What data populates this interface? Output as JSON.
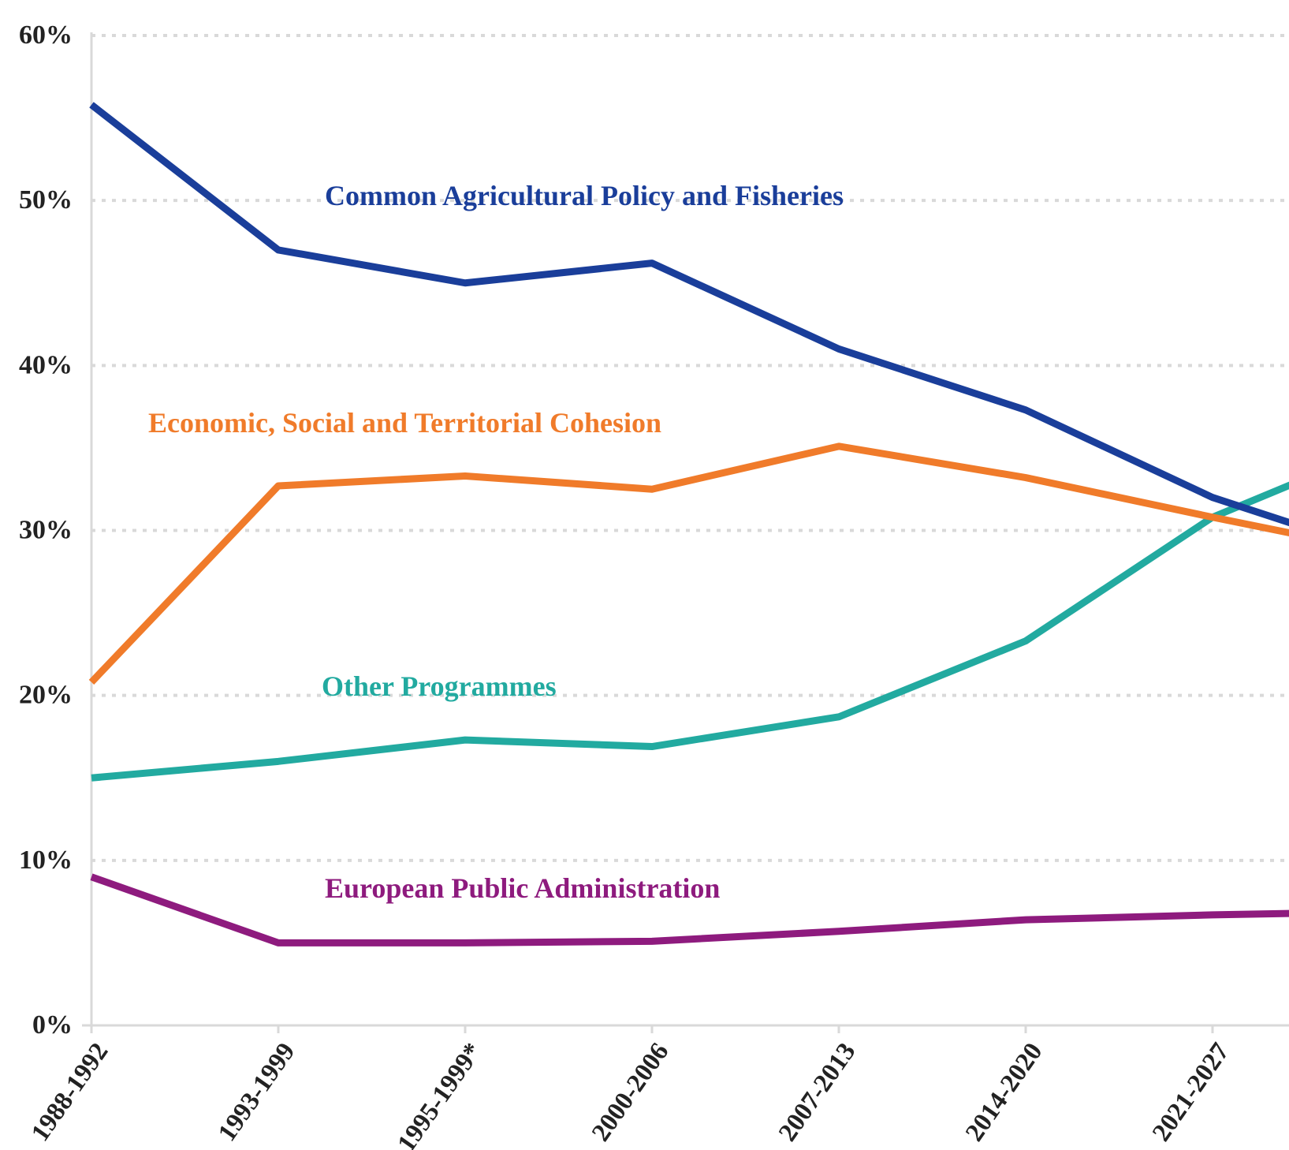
{
  "chart_data": {
    "type": "line",
    "categories": [
      "1988-1992",
      "1993-1999",
      "1995-1999*",
      "2000-2006",
      "2007-2013",
      "2014-2020",
      "2021-2027",
      ""
    ],
    "ylim": [
      0,
      60
    ],
    "yticks": [
      0,
      10,
      20,
      30,
      40,
      50,
      60
    ],
    "ytick_labels": [
      "0%",
      "10%",
      "20%",
      "30%",
      "40%",
      "50%",
      "60%"
    ],
    "grid": true,
    "series": [
      {
        "name": "Common Agricultural Policy and Fisheries",
        "color": "#1a3e9a",
        "values": [
          55.8,
          47.0,
          45.0,
          46.2,
          41.0,
          37.3,
          32.0,
          28.3
        ]
      },
      {
        "name": "Economic, Social and Territorial Cohesion",
        "color": "#f07b2a",
        "values": [
          20.8,
          32.7,
          33.3,
          32.5,
          35.1,
          33.2,
          30.8,
          28.5
        ]
      },
      {
        "name": "Other Programmes",
        "color": "#22aaa0",
        "values": [
          15.0,
          16.0,
          17.3,
          16.9,
          18.7,
          23.3,
          30.8,
          35.5
        ]
      },
      {
        "name": "European Public Administration",
        "color": "#8e1b7e",
        "values": [
          9.0,
          5.0,
          5.0,
          5.1,
          5.7,
          6.4,
          6.7,
          6.9
        ]
      }
    ]
  }
}
